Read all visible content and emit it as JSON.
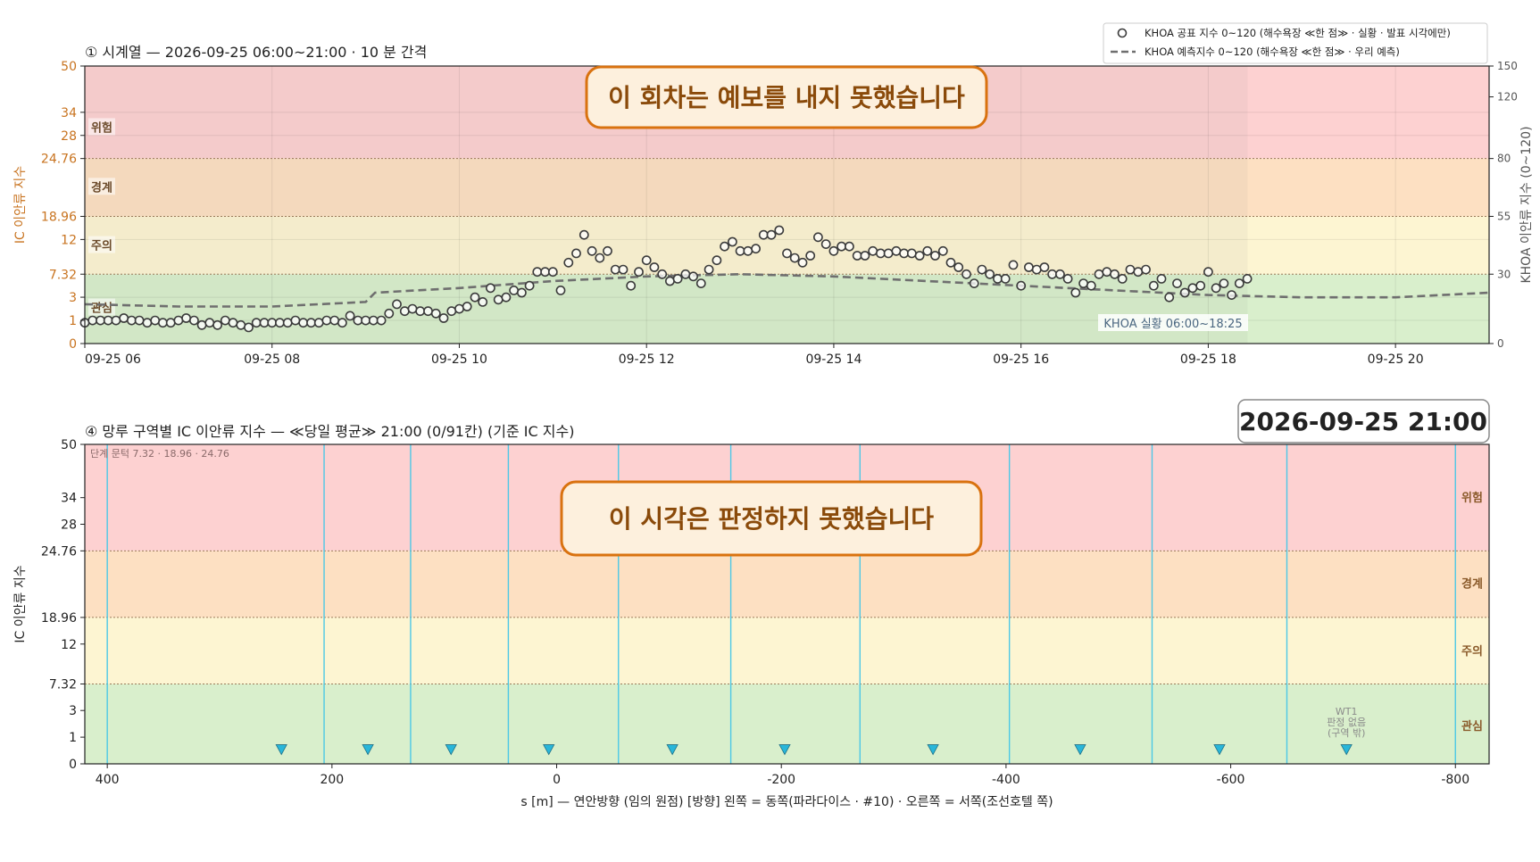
{
  "colors": {
    "zone_green": "#d9efcc",
    "zone_yellow": "#fdf5d2",
    "zone_orange": "#fde0c2",
    "zone_red": "#fdd1d1",
    "ic_axis": "#c8731f",
    "marker_blue": "#29b6d9",
    "divider_blue": "#4cc8e6",
    "callout_fill": "#fdf0dd",
    "callout_stroke": "#d9720f",
    "callout_text": "#8a4a0a"
  },
  "legend": {
    "observed_label": "KHOA 공표 지수 0~120 (해수욕장 ≪한 점≫ · 실황 · 발표 시각에만)",
    "forecast_label": "KHOA 예측지수 0~120 (해수욕장 ≪한 점≫ · 우리 예측)"
  },
  "chart_data": [
    {
      "type": "scatter",
      "title": "① 시계열 — 2026-09-25 06:00~21:00 · 10 분 간격",
      "ylabel": "IC 이안류 지수",
      "y2label": "KHOA 이안류 지수 (0~120)",
      "x_tick_labels": [
        "09-25 06",
        "09-25 08",
        "09-25 10",
        "09-25 12",
        "09-25 14",
        "09-25 16",
        "09-25 18",
        "09-25 20"
      ],
      "x_ticks_hours": [
        6,
        8,
        10,
        12,
        14,
        16,
        18,
        20
      ],
      "xlim_hours": [
        6,
        21
      ],
      "y_tick_labels": [
        "0",
        "1",
        "3",
        "7.32",
        "12",
        "18.96",
        "24.76",
        "28",
        "34",
        "50"
      ],
      "y2_tick_labels": [
        "0",
        "30",
        "55",
        "80",
        "120",
        "150"
      ],
      "zones": [
        "관심",
        "주의",
        "경계",
        "위험"
      ],
      "callout": "이 회차는 예보를 내지 못했습니다",
      "annotation": "KHOA 실황 06:00~18:25",
      "observed_hours": [
        6.0,
        6.083,
        6.167,
        6.25,
        6.333,
        6.417,
        6.5,
        6.583,
        6.667,
        6.75,
        6.833,
        6.917,
        7.0,
        7.083,
        7.167,
        7.25,
        7.333,
        7.417,
        7.5,
        7.583,
        7.667,
        7.75,
        7.833,
        7.917,
        8.0,
        8.083,
        8.167,
        8.25,
        8.333,
        8.417,
        8.5,
        8.583,
        8.667,
        8.75,
        8.833,
        8.917,
        9.0,
        9.083,
        9.167,
        9.25,
        9.333,
        9.417,
        9.5,
        9.583,
        9.667,
        9.75,
        9.833,
        9.917,
        10.0,
        10.083,
        10.167,
        10.25,
        10.333,
        10.417,
        10.5,
        10.583,
        10.667,
        10.75,
        10.833,
        10.917,
        11.0,
        11.083,
        11.167,
        11.25,
        11.333,
        11.417,
        11.5,
        11.583,
        11.667,
        11.75,
        11.833,
        11.917,
        12.0,
        12.083,
        12.167,
        12.25,
        12.333,
        12.417,
        12.5,
        12.583,
        12.667,
        12.75,
        12.833,
        12.917,
        13.0,
        13.083,
        13.167,
        13.25,
        13.333,
        13.417,
        13.5,
        13.583,
        13.667,
        13.75,
        13.833,
        13.917,
        14.0,
        14.083,
        14.167,
        14.25,
        14.333,
        14.417,
        14.5,
        14.583,
        14.667,
        14.75,
        14.833,
        14.917,
        15.0,
        15.083,
        15.167,
        15.25,
        15.333,
        15.417,
        15.5,
        15.583,
        15.667,
        15.75,
        15.833,
        15.917,
        16.0,
        16.083,
        16.167,
        16.25,
        16.333,
        16.417,
        16.5,
        16.583,
        16.667,
        16.75,
        16.833,
        16.917,
        17.0,
        17.083,
        17.167,
        17.25,
        17.333,
        17.417,
        17.5,
        17.583,
        17.667,
        17.75,
        17.833,
        17.917,
        18.0,
        18.083,
        18.167,
        18.25,
        18.333,
        18.417
      ],
      "observed_values": [
        9,
        10,
        10,
        10,
        10,
        11,
        10,
        10,
        9,
        10,
        9,
        9,
        10,
        11,
        10,
        8,
        9,
        8,
        10,
        9,
        8,
        7,
        9,
        9,
        9,
        9,
        9,
        10,
        9,
        9,
        9,
        10,
        10,
        9,
        12,
        10,
        10,
        10,
        10,
        13,
        17,
        14,
        15,
        14,
        14,
        13,
        11,
        14,
        15,
        16,
        20,
        18,
        24,
        19,
        20,
        23,
        22,
        25,
        31,
        31,
        31,
        23,
        35,
        39,
        47,
        40,
        37,
        40,
        32,
        32,
        25,
        31,
        36,
        33,
        30,
        27,
        28,
        30,
        29,
        26,
        32,
        36,
        42,
        44,
        40,
        40,
        41,
        47,
        47,
        49,
        39,
        37,
        35,
        38,
        46,
        43,
        40,
        42,
        42,
        38,
        38,
        40,
        39,
        39,
        40,
        39,
        39,
        38,
        40,
        38,
        40,
        35,
        33,
        30,
        26,
        32,
        30,
        28,
        28,
        34,
        25,
        33,
        32,
        33,
        30,
        30,
        28,
        22,
        26,
        25,
        30,
        31,
        30,
        28,
        32,
        31,
        32,
        25,
        28,
        20,
        26,
        22,
        24,
        25,
        31,
        24,
        26,
        21,
        26,
        28,
        27
      ],
      "forecast_hours": [
        6.0,
        7.0,
        8.0,
        9.0,
        9.1,
        10.0,
        11.0,
        12.0,
        13.0,
        14.0,
        15.0,
        16.0,
        17.0,
        18.0,
        19.0,
        20.0,
        21.0
      ],
      "forecast_values": [
        17,
        16,
        16,
        18,
        22,
        24,
        27,
        29,
        30,
        29,
        27,
        25,
        23,
        21,
        20,
        20,
        22
      ]
    },
    {
      "type": "scatter",
      "title": "④ 망루 구역별 IC 이안류 지수 — ≪당일 평균≫ 21:00  (0/91칸)   (기준 IC 지수)",
      "ylabel": "IC 이안류 지수",
      "xlabel": "s [m] — 연안방향 (임의 원점)     [방향] 왼쪽 = 동쪽(파라다이스 · #10) · 오른쪽 = 서쪽(조선호텔 쪽)",
      "xlim": [
        420,
        -830
      ],
      "x_ticks": [
        400,
        200,
        0,
        -200,
        -400,
        -600,
        -800
      ],
      "x_tick_labels": [
        "400",
        "200",
        "0",
        "-200",
        "-400",
        "-600",
        "-800"
      ],
      "y_tick_labels": [
        "0",
        "1",
        "3",
        "7.32",
        "12",
        "18.96",
        "24.76",
        "28",
        "34",
        "50"
      ],
      "zones": [
        "관심",
        "주의",
        "경계",
        "위험"
      ],
      "threshold_note": "단계 문턱 7.32 · 18.96 · 24.76",
      "timestamp": "2026-09-25  21:00",
      "callout": "이 시각은 판정하지 못했습니다",
      "divider_s": [
        400,
        207,
        130,
        43,
        -55,
        -155,
        -270,
        -403,
        -530,
        -650,
        -800
      ],
      "tower_s": [
        245,
        168,
        94,
        7,
        -103,
        -203,
        -335,
        -466,
        -590,
        -703
      ],
      "tower_level": 0.55,
      "wt_label_lines": [
        "WT1",
        "판정 없음",
        "(구역 밖)"
      ]
    }
  ]
}
